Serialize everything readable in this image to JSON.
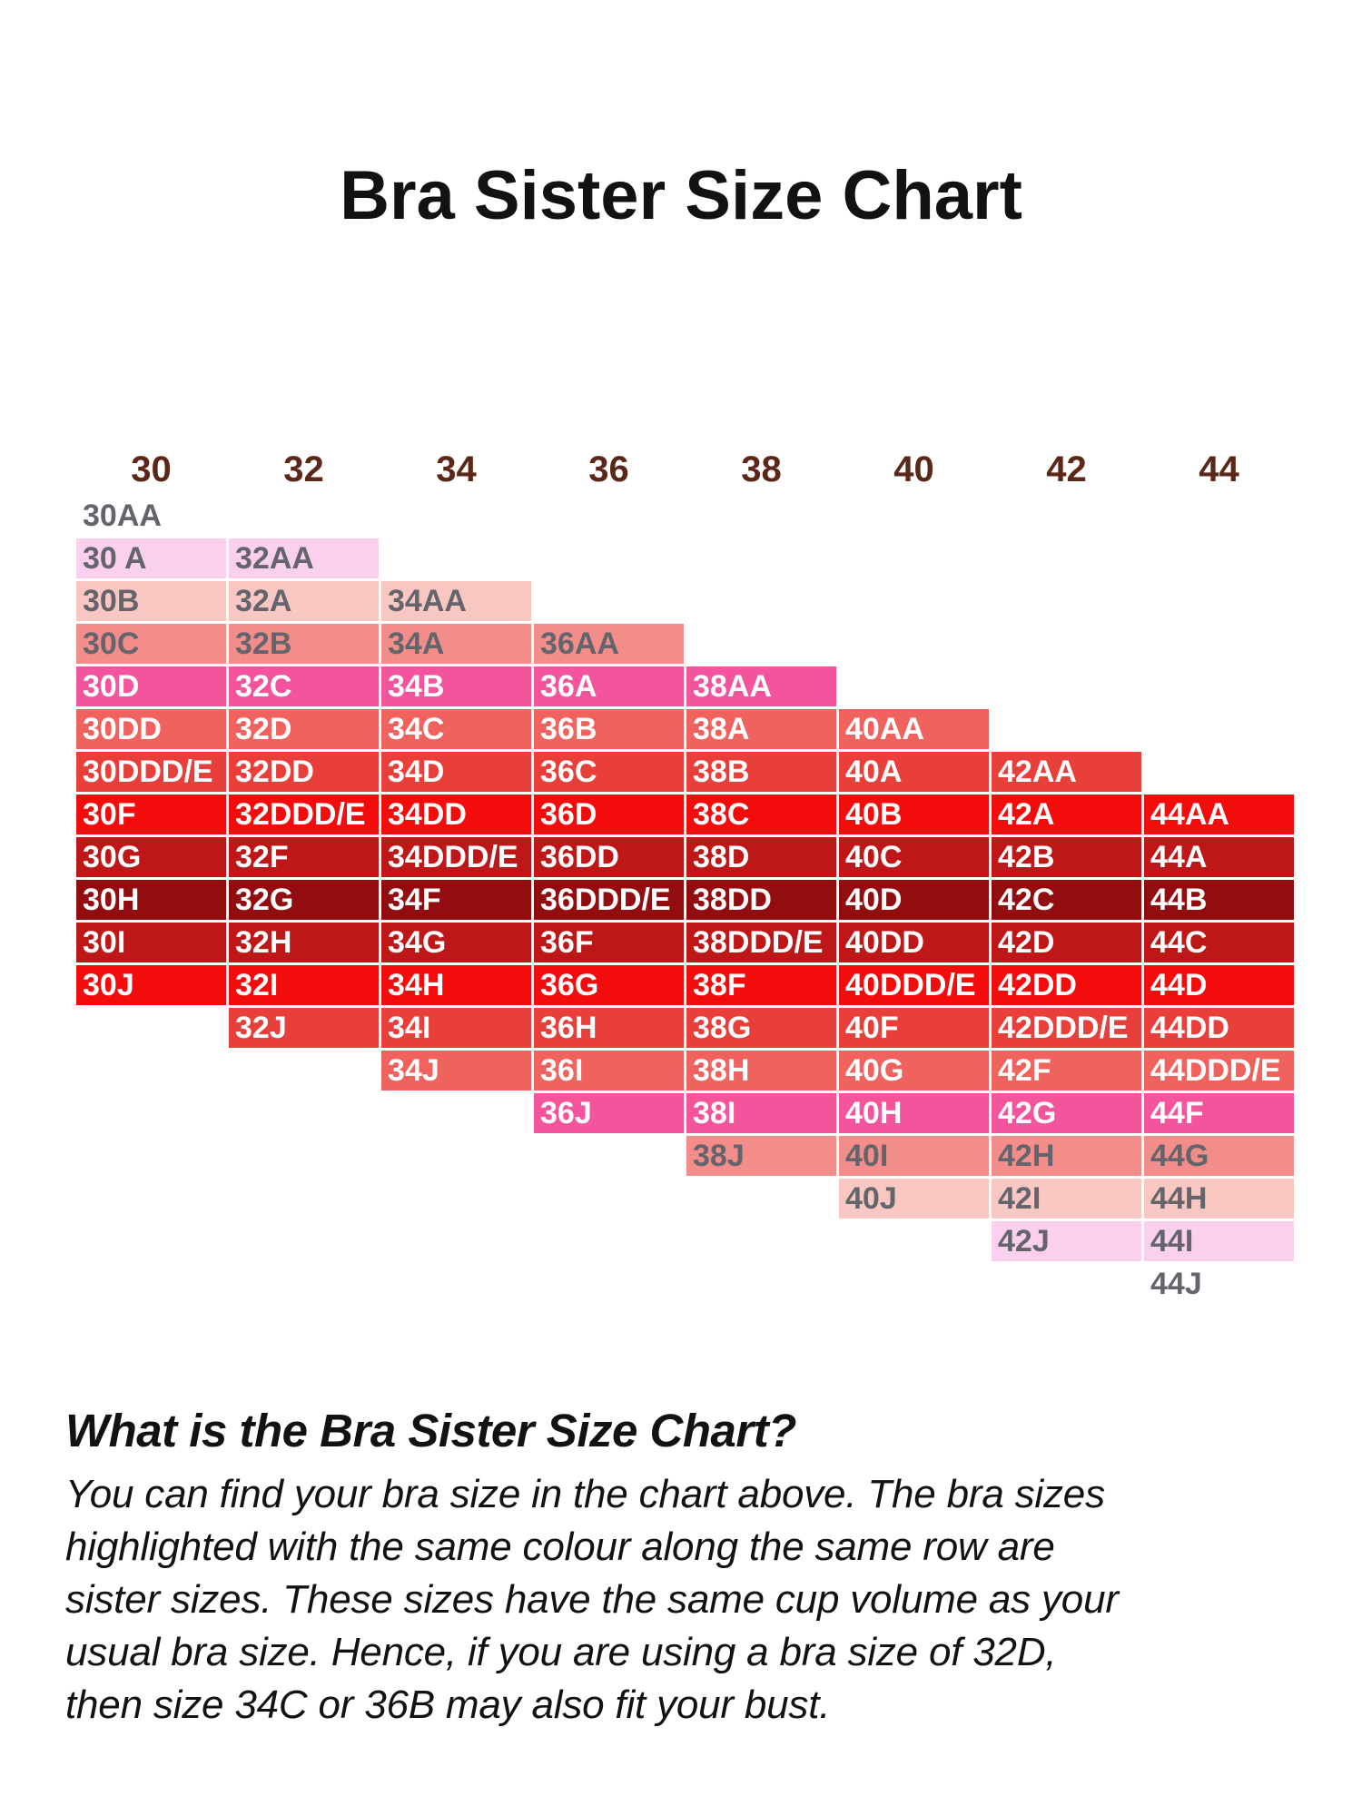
{
  "title": "Bra Sister Size Chart",
  "chart_data": {
    "type": "table",
    "title": "Bra Sister Size Chart",
    "band_sizes": [
      "30",
      "32",
      "34",
      "36",
      "38",
      "40",
      "42",
      "44"
    ],
    "cup_order": [
      "AA",
      "A",
      "B",
      "C",
      "D",
      "DD",
      "DDD/E",
      "F",
      "G",
      "H",
      "I",
      "J"
    ],
    "header_text_color": "#5a2718",
    "gray_text_color": "#64656c",
    "white_text_color": "#ffffff",
    "rows": [
      {
        "bg": "transparent",
        "fg": "#64656c",
        "cells": [
          {
            "col": 0,
            "label": "30AA"
          }
        ]
      },
      {
        "bg": "#fbcfee",
        "fg": "#64656c",
        "cells": [
          {
            "col": 0,
            "label": "30 A"
          },
          {
            "col": 1,
            "label": "32AA"
          }
        ]
      },
      {
        "bg": "#f9c7c1",
        "fg": "#64656c",
        "cells": [
          {
            "col": 0,
            "label": "30B"
          },
          {
            "col": 1,
            "label": "32A"
          },
          {
            "col": 2,
            "label": "34AA"
          }
        ]
      },
      {
        "bg": "#f28d89",
        "fg": "#64656c",
        "cells": [
          {
            "col": 0,
            "label": "30C"
          },
          {
            "col": 1,
            "label": "32B"
          },
          {
            "col": 2,
            "label": "34A"
          },
          {
            "col": 3,
            "label": "36AA"
          }
        ]
      },
      {
        "bg": "#f4549b",
        "fg": "#ffffff",
        "cells": [
          {
            "col": 0,
            "label": "30D"
          },
          {
            "col": 1,
            "label": "32C"
          },
          {
            "col": 2,
            "label": "34B"
          },
          {
            "col": 3,
            "label": "36A"
          },
          {
            "col": 4,
            "label": "38AA"
          }
        ]
      },
      {
        "bg": "#f0625e",
        "fg": "#ffffff",
        "cells": [
          {
            "col": 0,
            "label": "30DD"
          },
          {
            "col": 1,
            "label": "32D"
          },
          {
            "col": 2,
            "label": "34C"
          },
          {
            "col": 3,
            "label": "36B"
          },
          {
            "col": 4,
            "label": "38A"
          },
          {
            "col": 5,
            "label": "40AA"
          }
        ]
      },
      {
        "bg": "#e93f3a",
        "fg": "#ffffff",
        "cells": [
          {
            "col": 0,
            "label": "30DDD/E"
          },
          {
            "col": 1,
            "label": "32DD"
          },
          {
            "col": 2,
            "label": "34D"
          },
          {
            "col": 3,
            "label": "36C"
          },
          {
            "col": 4,
            "label": "38B"
          },
          {
            "col": 5,
            "label": "40A"
          },
          {
            "col": 6,
            "label": "42AA"
          }
        ]
      },
      {
        "bg": "#f30c0c",
        "fg": "#ffffff",
        "cells": [
          {
            "col": 0,
            "label": "30F"
          },
          {
            "col": 1,
            "label": "32DDD/E"
          },
          {
            "col": 2,
            "label": "34DD"
          },
          {
            "col": 3,
            "label": "36D"
          },
          {
            "col": 4,
            "label": "38C"
          },
          {
            "col": 5,
            "label": "40B"
          },
          {
            "col": 6,
            "label": "42A"
          },
          {
            "col": 7,
            "label": "44AA"
          }
        ]
      },
      {
        "bg": "#bd1717",
        "fg": "#ffffff",
        "cells": [
          {
            "col": 0,
            "label": "30G"
          },
          {
            "col": 1,
            "label": "32F"
          },
          {
            "col": 2,
            "label": "34DDD/E"
          },
          {
            "col": 3,
            "label": "36DD"
          },
          {
            "col": 4,
            "label": "38D"
          },
          {
            "col": 5,
            "label": "40C"
          },
          {
            "col": 6,
            "label": "42B"
          },
          {
            "col": 7,
            "label": "44A"
          }
        ]
      },
      {
        "bg": "#920d10",
        "fg": "#ffffff",
        "cells": [
          {
            "col": 0,
            "label": "30H"
          },
          {
            "col": 1,
            "label": "32G"
          },
          {
            "col": 2,
            "label": "34F"
          },
          {
            "col": 3,
            "label": "36DDD/E"
          },
          {
            "col": 4,
            "label": "38DD"
          },
          {
            "col": 5,
            "label": "40D"
          },
          {
            "col": 6,
            "label": "42C"
          },
          {
            "col": 7,
            "label": "44B"
          }
        ]
      },
      {
        "bg": "#bd1717",
        "fg": "#ffffff",
        "cells": [
          {
            "col": 0,
            "label": "30I"
          },
          {
            "col": 1,
            "label": "32H"
          },
          {
            "col": 2,
            "label": "34G"
          },
          {
            "col": 3,
            "label": "36F"
          },
          {
            "col": 4,
            "label": "38DDD/E"
          },
          {
            "col": 5,
            "label": "40DD"
          },
          {
            "col": 6,
            "label": "42D"
          },
          {
            "col": 7,
            "label": "44C"
          }
        ]
      },
      {
        "bg": "#f30c0c",
        "fg": "#ffffff",
        "cells": [
          {
            "col": 0,
            "label": "30J"
          },
          {
            "col": 1,
            "label": "32I"
          },
          {
            "col": 2,
            "label": "34H"
          },
          {
            "col": 3,
            "label": "36G"
          },
          {
            "col": 4,
            "label": "38F"
          },
          {
            "col": 5,
            "label": "40DDD/E"
          },
          {
            "col": 6,
            "label": "42DD"
          },
          {
            "col": 7,
            "label": "44D"
          }
        ]
      },
      {
        "bg": "#e93f3a",
        "fg": "#ffffff",
        "cells": [
          {
            "col": 1,
            "label": "32J"
          },
          {
            "col": 2,
            "label": "34I"
          },
          {
            "col": 3,
            "label": "36H"
          },
          {
            "col": 4,
            "label": "38G"
          },
          {
            "col": 5,
            "label": "40F"
          },
          {
            "col": 6,
            "label": "42DDD/E"
          },
          {
            "col": 7,
            "label": "44DD"
          }
        ]
      },
      {
        "bg": "#f0625e",
        "fg": "#ffffff",
        "cells": [
          {
            "col": 2,
            "label": "34J"
          },
          {
            "col": 3,
            "label": "36I"
          },
          {
            "col": 4,
            "label": "38H"
          },
          {
            "col": 5,
            "label": "40G"
          },
          {
            "col": 6,
            "label": "42F"
          },
          {
            "col": 7,
            "label": "44DDD/E"
          }
        ]
      },
      {
        "bg": "#f4549b",
        "fg": "#ffffff",
        "cells": [
          {
            "col": 3,
            "label": "36J"
          },
          {
            "col": 4,
            "label": "38I"
          },
          {
            "col": 5,
            "label": "40H"
          },
          {
            "col": 6,
            "label": "42G"
          },
          {
            "col": 7,
            "label": "44F"
          }
        ]
      },
      {
        "bg": "#f28d89",
        "fg": "#64656c",
        "cells": [
          {
            "col": 4,
            "label": "38J"
          },
          {
            "col": 5,
            "label": "40I"
          },
          {
            "col": 6,
            "label": "42H"
          },
          {
            "col": 7,
            "label": "44G"
          }
        ]
      },
      {
        "bg": "#f9c7c1",
        "fg": "#64656c",
        "cells": [
          {
            "col": 5,
            "label": "40J"
          },
          {
            "col": 6,
            "label": "42I"
          },
          {
            "col": 7,
            "label": "44H"
          }
        ]
      },
      {
        "bg": "#fbcfee",
        "fg": "#64656c",
        "cells": [
          {
            "col": 6,
            "label": "42J"
          },
          {
            "col": 7,
            "label": "44I"
          }
        ]
      },
      {
        "bg": "transparent",
        "fg": "#64656c",
        "cells": [
          {
            "col": 7,
            "label": "44J"
          }
        ]
      }
    ]
  },
  "footer": {
    "heading": "What is the Bra Sister Size Chart?",
    "body": "You can find your bra size in the chart above. The bra sizes\nhighlighted with the same colour along the same row are\nsister sizes. These sizes have the same cup volume as your\nusual bra size. Hence, if you are using a bra size of 32D,\nthen size 34C or 36B may also fit your bust."
  }
}
